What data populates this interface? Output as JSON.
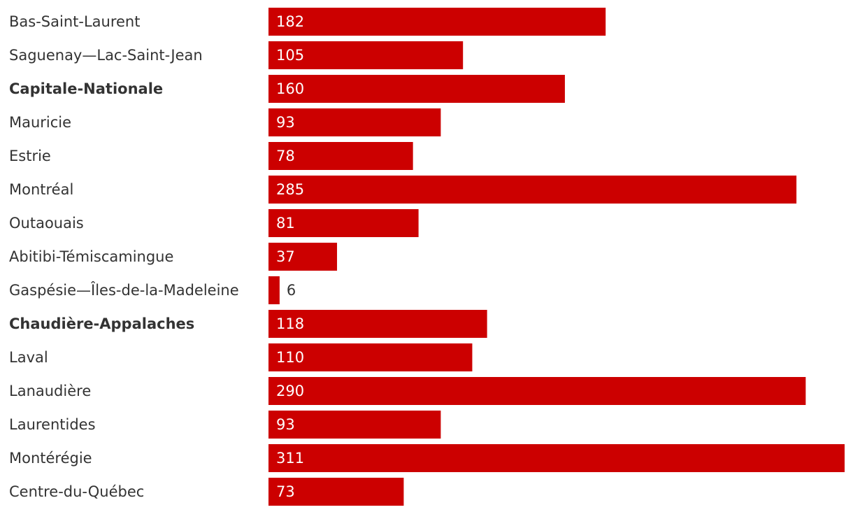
{
  "chart_data": {
    "type": "bar",
    "orientation": "horizontal",
    "categories": [
      "Bas-Saint-Laurent",
      "Saguenay—Lac-Saint-Jean",
      "Capitale-Nationale",
      "Mauricie",
      "Estrie",
      "Montréal",
      "Outaouais",
      "Abitibi-Témiscamingue",
      "Gaspésie—Îles-de-la-Madeleine",
      "Chaudière-Appalaches",
      "Laval",
      "Lanaudière",
      "Laurentides",
      "Montérégie",
      "Centre-du-Québec"
    ],
    "values": [
      182,
      105,
      160,
      93,
      78,
      285,
      81,
      37,
      6,
      118,
      110,
      290,
      93,
      311,
      73
    ],
    "label_weight": [
      "normal",
      "normal",
      "bold",
      "normal",
      "normal",
      "normal",
      "normal",
      "normal",
      "normal",
      "bold",
      "normal",
      "normal",
      "normal",
      "normal",
      "normal"
    ],
    "color": "#cc0000"
  }
}
